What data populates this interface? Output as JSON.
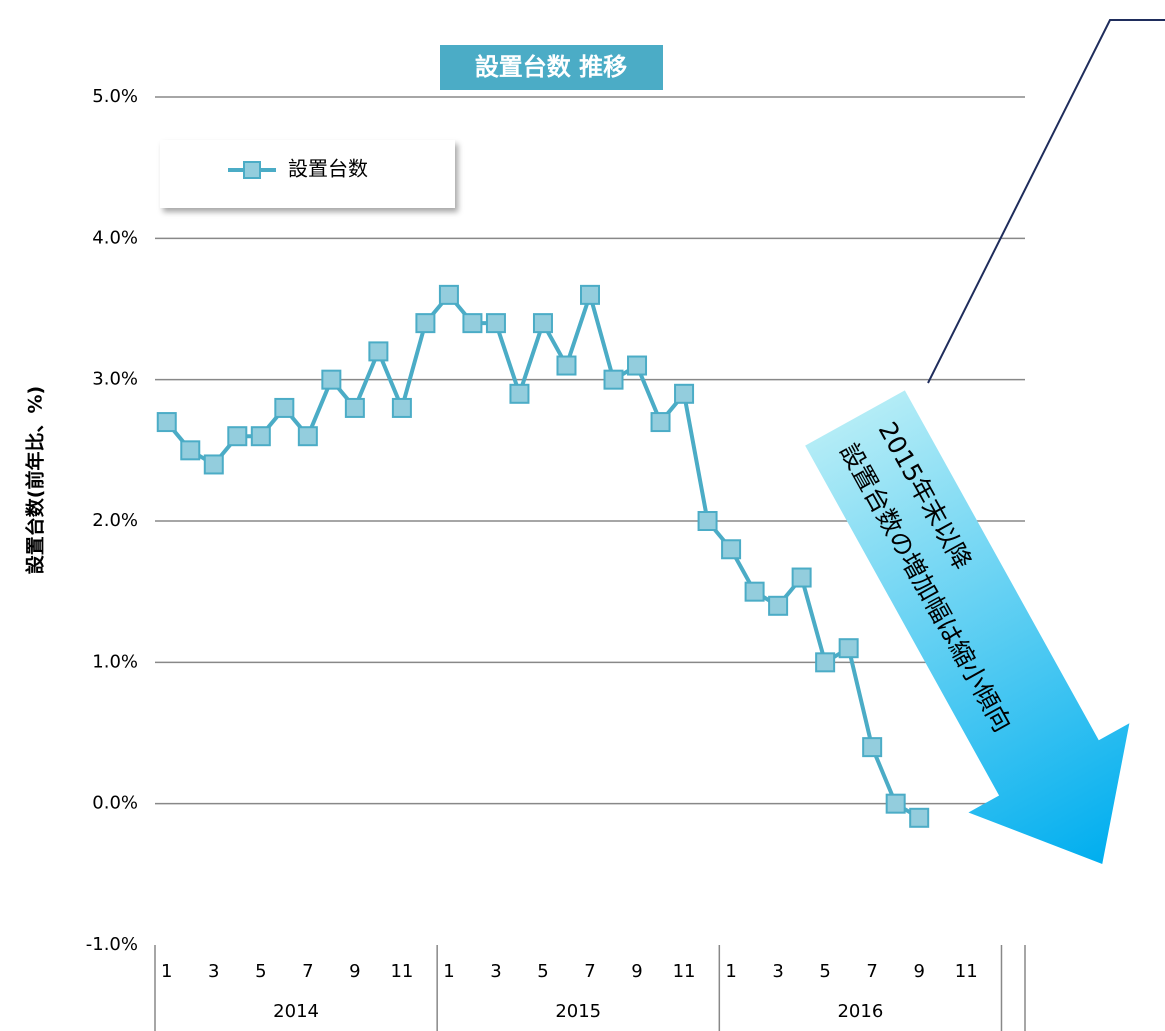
{
  "chart_data": {
    "type": "line",
    "title": "設置台数 推移",
    "y_label": "設置台数(前年比、%)",
    "annotations": [
      "2015年末以降",
      "設置台数の増加幅は縮小傾向"
    ],
    "categories": [
      "1",
      null,
      "3",
      null,
      "5",
      null,
      "7",
      null,
      "9",
      null,
      "11",
      null,
      "1",
      null,
      "3",
      null,
      "5",
      null,
      "7",
      null,
      "9",
      null,
      "11",
      null,
      "1",
      null,
      "3",
      null,
      "5",
      null,
      "7",
      null,
      "9",
      null,
      "11",
      null
    ],
    "years": [
      "2014",
      "2015",
      "2016"
    ],
    "series": [
      {
        "name": "設置台数",
        "color": "#4bacc6",
        "marker_color": "#93cddd",
        "values": [
          2.7,
          2.5,
          2.4,
          2.6,
          2.6,
          2.8,
          2.6,
          3.0,
          2.8,
          3.2,
          2.8,
          3.4,
          3.6,
          3.4,
          3.4,
          2.9,
          3.4,
          3.1,
          3.6,
          3.0,
          3.1,
          2.7,
          2.9,
          2.0,
          1.8,
          1.5,
          1.4,
          1.6,
          1.0,
          1.1,
          0.4,
          0.0,
          -0.1,
          null,
          null,
          null
        ]
      }
    ],
    "ylim": [
      -1,
      5
    ],
    "yticks": [
      {
        "value": -1,
        "label": "-1.0%"
      },
      {
        "value": 0,
        "label": "0.0%"
      },
      {
        "value": 1,
        "label": "1.0%"
      },
      {
        "value": 2,
        "label": "2.0%"
      },
      {
        "value": 3,
        "label": "3.0%"
      },
      {
        "value": 4,
        "label": "4.0%"
      },
      {
        "value": 5,
        "label": "5.0%"
      }
    ],
    "grid": true
  }
}
